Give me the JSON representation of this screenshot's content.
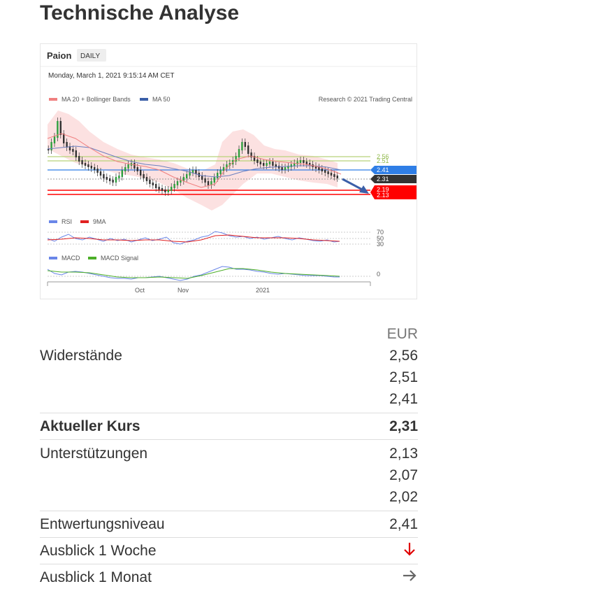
{
  "page_title": "Technische Analyse",
  "chart": {
    "stock": "Paion",
    "period_badge": "DAILY",
    "timestamp": "Monday, March 1, 2021 9:15:14 AM CET",
    "legend_price": [
      "MA 20 + Bollinger Bands",
      "MA 50"
    ],
    "copyright": "Research © 2021 Trading Central",
    "price_levels": [
      "2.56",
      "2.51",
      "2.41",
      "2.31",
      "2.19",
      "2.13"
    ],
    "legend_rsi": [
      "RSI",
      "9MA"
    ],
    "rsi_levels": [
      "70",
      "50",
      "30"
    ],
    "legend_macd": [
      "MACD",
      "MACD Signal"
    ],
    "macd_level": "0",
    "x_labels": [
      "Oct",
      "Nov",
      "2021"
    ],
    "colors": {
      "ma20": "#f08080",
      "ma50": "#3b5fa8",
      "rsi": "#6a86e8",
      "rsi_9ma": "#e02020",
      "macd": "#6a86e8",
      "macd_signal": "#4caf28",
      "resistance": "#b8d27a",
      "pivot": "#2f7ee6",
      "current": "#333333",
      "support": "#ff0000"
    }
  },
  "table": {
    "currency": "EUR",
    "resistances_label": "Widerstände",
    "resistances": [
      "2,56",
      "2,51",
      "2,41"
    ],
    "current_label": "Aktueller Kurs",
    "current_value": "2,31",
    "supports_label": "Unterstützungen",
    "supports": [
      "2,13",
      "2,07",
      "2,02"
    ],
    "invalidation_label": "Entwertungsniveau",
    "invalidation_value": "2,41",
    "outlook_week_label": "Ausblick 1 Woche",
    "outlook_week_icon": "arrow-down-icon",
    "outlook_month_label": "Ausblick 1 Monat",
    "outlook_month_icon": "arrow-right-icon"
  }
}
